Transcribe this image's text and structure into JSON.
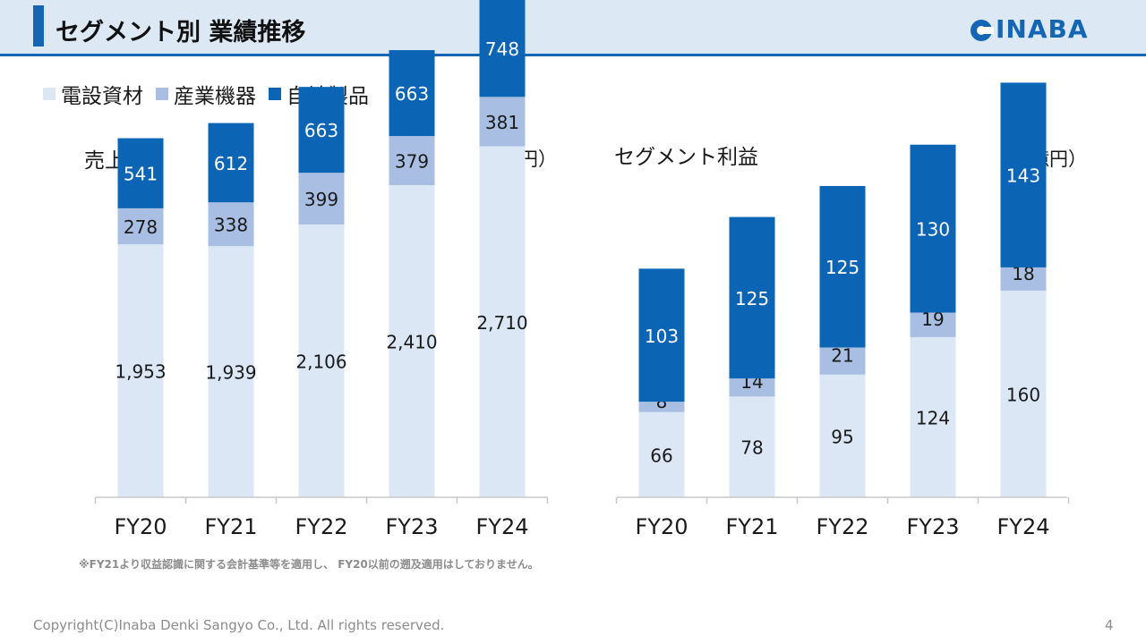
{
  "header": {
    "title": "セグメント別 業績推移",
    "logo_text": "INABA"
  },
  "legend": [
    {
      "name": "電設資材",
      "color": "#dbe7f5"
    },
    {
      "name": "産業機器",
      "color": "#a8bfe3"
    },
    {
      "name": "自社製品",
      "color": "#0b64b4"
    }
  ],
  "chart_data": [
    {
      "type": "bar",
      "stacked": true,
      "title": "売上高",
      "unit": "（億円）",
      "categories": [
        "FY20",
        "FY21",
        "FY22",
        "FY23",
        "FY24"
      ],
      "series": [
        {
          "name": "電設資材",
          "values": [
            1953,
            1939,
            2106,
            2410,
            2710
          ]
        },
        {
          "name": "産業機器",
          "values": [
            278,
            338,
            399,
            379,
            381
          ]
        },
        {
          "name": "自社製品",
          "values": [
            541,
            612,
            663,
            663,
            748
          ]
        }
      ],
      "value_labels": [
        [
          "1,953",
          "1,939",
          "2,106",
          "2,410",
          "2,710"
        ],
        [
          "278",
          "338",
          "399",
          "379",
          "381"
        ],
        [
          "541",
          "612",
          "663",
          "663",
          "748"
        ]
      ],
      "ylim": [
        0,
        3839
      ]
    },
    {
      "type": "bar",
      "stacked": true,
      "title": "セグメント利益",
      "unit": "（億円）",
      "categories": [
        "FY20",
        "FY21",
        "FY22",
        "FY23",
        "FY24"
      ],
      "series": [
        {
          "name": "電設資材",
          "values": [
            66,
            78,
            95,
            124,
            160
          ]
        },
        {
          "name": "産業機器",
          "values": [
            8,
            14,
            21,
            19,
            18
          ]
        },
        {
          "name": "自社製品",
          "values": [
            103,
            125,
            125,
            130,
            143
          ]
        }
      ],
      "value_labels": [
        [
          "66",
          "78",
          "95",
          "124",
          "160"
        ],
        [
          "8",
          "14",
          "21",
          "19",
          "18"
        ],
        [
          "103",
          "125",
          "125",
          "130",
          "143"
        ]
      ],
      "ylim": [
        0,
        385
      ]
    }
  ],
  "footnote": "※FY21より収益認識に関する会計基準等を適用し、 FY20以前の遡及適用はしておりません。",
  "footer": {
    "copyright": "Copyright(C)Inaba Denki Sangyo Co., Ltd. All rights reserved.",
    "page_number": "4"
  }
}
